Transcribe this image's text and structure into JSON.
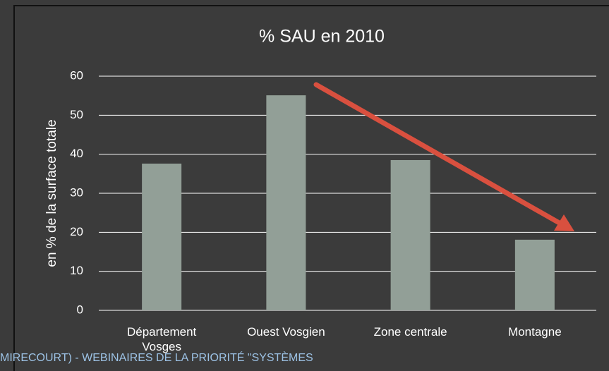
{
  "chart_data": {
    "type": "bar",
    "title": "% SAU en 2010",
    "y_label": "en % de la surface totale",
    "categories": [
      "Département Vosges",
      "Ouest Vosgien",
      "Zone centrale",
      "Montagne"
    ],
    "values": [
      37.6,
      55.1,
      38.5,
      18.1
    ],
    "color": "#929f97",
    "ylim": [
      0,
      60
    ],
    "yticks": [
      0,
      10,
      20,
      30,
      40,
      50,
      60
    ],
    "grid": true
  },
  "footer": "MIRECOURT) - WEBINAIRES DE LA PRIORITÉ \"SYSTÈMES"
}
